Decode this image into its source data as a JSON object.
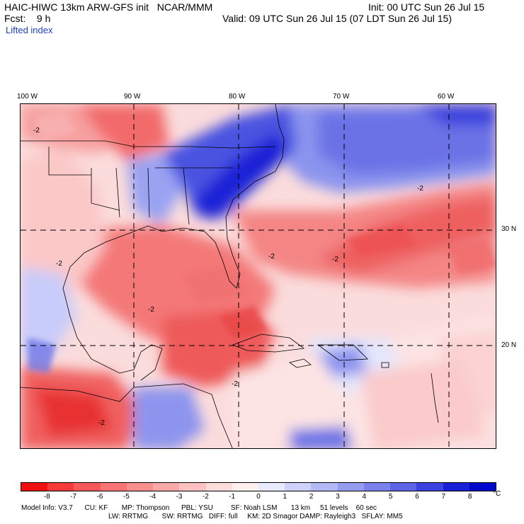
{
  "header": {
    "title": "HAIC-HIWC 13km ARW-GFS init   NCAR/MMM",
    "init": "Init: 00 UTC Sun 26 Jul 15",
    "fcst": "Fcst:    9 h",
    "valid": "Valid: 09 UTC Sun 26 Jul 15 (07 LDT Sun 26 Jul 15)",
    "field": "Lifted index"
  },
  "axes": {
    "lon_labels": [
      "100 W",
      "90 W",
      "80 W",
      "70 W",
      "60 W"
    ],
    "lat_labels": [
      "30 N",
      "20 N"
    ]
  },
  "colorbar": {
    "ticks": [
      "-8",
      "-7",
      "-6",
      "-5",
      "-4",
      "-3",
      "-2",
      "-1",
      "0",
      "1",
      "2",
      "3",
      "4",
      "5",
      "6",
      "7",
      "8"
    ],
    "unit": "°C",
    "colors": [
      "#f01010",
      "#f53a3a",
      "#f85a5a",
      "#f97575",
      "#fa8f8f",
      "#fba8a8",
      "#fcc2c2",
      "#fddcdc",
      "#fff0f0",
      "#e8eaff",
      "#cfd3fb",
      "#b3b8f6",
      "#969df1",
      "#7a80ec",
      "#5c63e5",
      "#3c42de",
      "#1a20d6",
      "#0008cc"
    ]
  },
  "model_info": {
    "line1": "Model Info: V3.7      CU: KF       MP: Thompson      PBL: YSU         SF: Noah LSM       13 km     51 levels    60 sec",
    "line2": "LW: RRTMG       SW: RRTMG   DIFF: full     KM: 2D Smagor DAMP: Rayleigh3   SFLAY: MM5"
  },
  "contour_labels": [
    "-2",
    "-2",
    "-2",
    "-2",
    "-2",
    "-2",
    "-2",
    "-2"
  ]
}
